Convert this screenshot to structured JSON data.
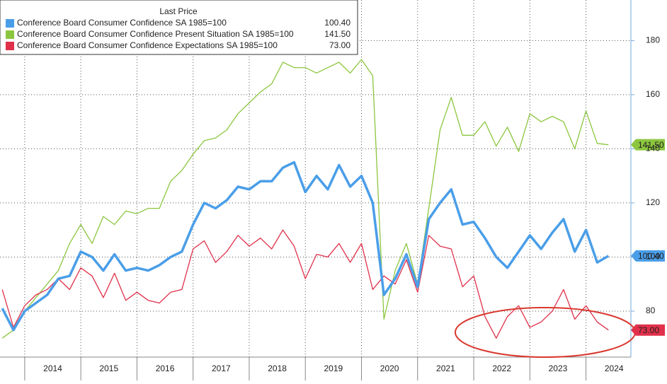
{
  "chart_data": {
    "type": "line",
    "legend_header": "Last Price",
    "x": [
      2013.6,
      2013.8,
      2014.0,
      2014.2,
      2014.4,
      2014.6,
      2014.8,
      2015.0,
      2015.2,
      2015.4,
      2015.6,
      2015.8,
      2016.0,
      2016.2,
      2016.4,
      2016.6,
      2016.8,
      2017.0,
      2017.2,
      2017.4,
      2017.6,
      2017.8,
      2018.0,
      2018.2,
      2018.4,
      2018.6,
      2018.8,
      2019.0,
      2019.2,
      2019.4,
      2019.6,
      2019.8,
      2020.0,
      2020.2,
      2020.4,
      2020.6,
      2020.8,
      2021.0,
      2021.2,
      2021.4,
      2021.6,
      2021.8,
      2022.0,
      2022.2,
      2022.4,
      2022.6,
      2022.8,
      2023.0,
      2023.2,
      2023.4,
      2023.6,
      2023.8,
      2024.0,
      2024.2,
      2024.4
    ],
    "series": [
      {
        "name": "Conference Board Consumer Confidence SA 1985=100",
        "color": "#4a9ee8",
        "width": 3.5,
        "last_label": "100.40",
        "values": [
          81,
          73,
          80,
          83,
          86,
          92,
          93,
          102,
          100,
          95,
          101,
          95,
          96,
          95,
          97,
          100,
          102,
          112,
          120,
          118,
          121,
          126,
          125,
          128,
          128,
          133,
          135,
          124,
          130,
          125,
          134,
          126,
          130,
          120,
          86,
          92,
          101,
          89,
          114,
          120,
          125,
          112,
          113,
          107,
          100,
          96,
          102,
          108,
          103,
          109,
          114,
          102,
          110,
          98,
          100.4
        ]
      },
      {
        "name": "Conference Board Consumer Confidence Present Situation SA 1985=100",
        "color": "#8cc63f",
        "width": 1.3,
        "last_label": "141.50",
        "values": [
          70,
          73,
          80,
          85,
          90,
          95,
          105,
          112,
          105,
          115,
          112,
          117,
          116,
          118,
          118,
          128,
          132,
          138,
          143,
          144,
          147,
          153,
          157,
          161,
          164,
          172,
          170,
          170,
          168,
          170,
          172,
          168,
          173,
          167,
          77,
          95,
          105,
          90,
          118,
          147,
          159,
          145,
          145,
          150,
          141,
          148,
          139,
          153,
          150,
          152,
          150,
          140,
          154,
          142,
          141.5
        ]
      },
      {
        "name": "Conference Board Consumer Confidence Expectations SA 1985=100",
        "color": "#e0304a",
        "width": 1.3,
        "last_label": "73.00",
        "values": [
          88,
          74,
          82,
          86,
          88,
          92,
          88,
          96,
          93,
          85,
          94,
          84,
          87,
          84,
          83,
          87,
          88,
          103,
          106,
          98,
          102,
          108,
          104,
          107,
          103,
          110,
          104,
          92,
          101,
          100,
          105,
          98,
          105,
          88,
          93,
          90,
          99,
          87,
          108,
          104,
          103,
          89,
          93,
          78,
          70,
          78,
          82,
          74,
          76,
          80,
          88,
          77,
          82,
          76,
          73
        ]
      }
    ],
    "xlim": [
      2013.56,
      2024.8
    ],
    "xticks": [
      2014,
      2015,
      2016,
      2017,
      2018,
      2019,
      2020,
      2021,
      2022,
      2023,
      2024
    ],
    "ylim": [
      63,
      195
    ],
    "yticks": [
      80,
      100,
      120,
      140,
      160,
      180
    ],
    "grid": true
  }
}
